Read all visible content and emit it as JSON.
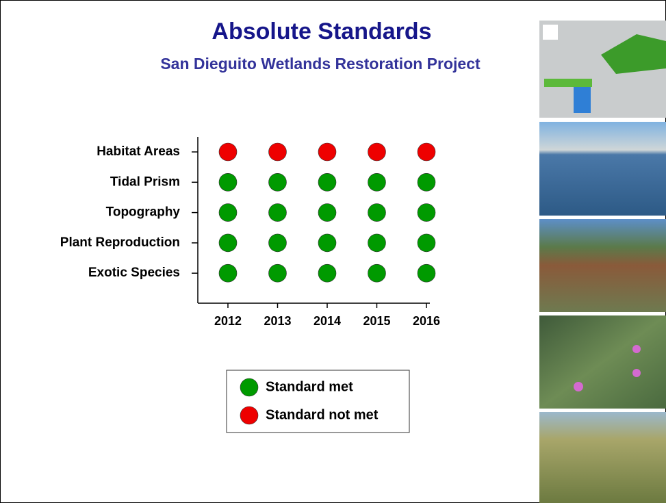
{
  "chart_data": {
    "type": "dot-matrix",
    "title": "Absolute Standards",
    "subtitle": "San Dieguito Wetlands Restoration Project",
    "categories": [
      "Habitat Areas",
      "Tidal Prism",
      "Topography",
      "Plant Reproduction",
      "Exotic Species"
    ],
    "x": [
      "2012",
      "2013",
      "2014",
      "2015",
      "2016"
    ],
    "met": [
      [
        false,
        false,
        false,
        false,
        false
      ],
      [
        true,
        true,
        true,
        true,
        true
      ],
      [
        true,
        true,
        true,
        true,
        true
      ],
      [
        true,
        true,
        true,
        true,
        true
      ],
      [
        true,
        true,
        true,
        true,
        true
      ]
    ],
    "legend": [
      {
        "name": "Standard met",
        "color": "#009a00"
      },
      {
        "name": "Standard not met",
        "color": "#ee0000"
      }
    ]
  }
}
